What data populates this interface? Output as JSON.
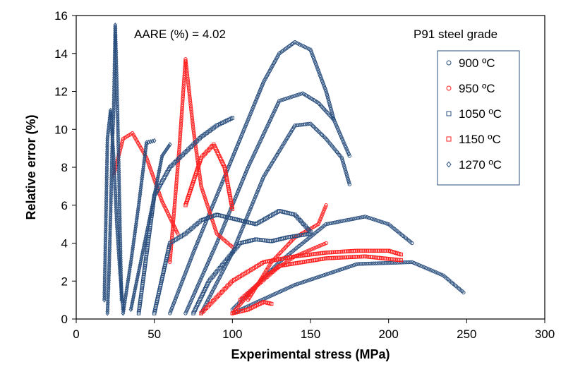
{
  "chart_data": {
    "type": "scatter",
    "xlabel": "Experimental stress (MPa)",
    "ylabel": "Relative error (%)",
    "xlim": [
      0,
      300
    ],
    "ylim": [
      0,
      16
    ],
    "xticks": [
      0,
      50,
      100,
      150,
      200,
      250,
      300
    ],
    "yticks": [
      0,
      2,
      4,
      6,
      8,
      10,
      12,
      14,
      16
    ],
    "grid": false,
    "legend_position": "right",
    "annotations": {
      "aare": "AARE (%) = 4.02",
      "grade": "P91  steel grade"
    },
    "series": [
      {
        "name": "900 ºC",
        "color": "#2a4f7e",
        "marker": "circle",
        "curves": [
          {
            "x": [
              60,
              75,
              90,
              105,
              120,
              130,
              140,
              150,
              160,
              165
            ],
            "y": [
              0.3,
              3.5,
              6.5,
              9.5,
              12.5,
              14.0,
              14.6,
              14.2,
              12.0,
              10.5
            ]
          },
          {
            "x": [
              70,
              90,
              110,
              130,
              145,
              155,
              165,
              175
            ],
            "y": [
              0.3,
              4.0,
              8.0,
              11.5,
              11.9,
              11.4,
              10.5,
              8.6
            ]
          },
          {
            "x": [
              80,
              100,
              120,
              140,
              150,
              160,
              170,
              175
            ],
            "y": [
              0.3,
              3.5,
              7.5,
              10.2,
              10.3,
              9.5,
              8.5,
              7.1
            ]
          },
          {
            "x": [
              100,
              130,
              160,
              185,
              200,
              215
            ],
            "y": [
              0.5,
              3.0,
              5.0,
              5.4,
              5.0,
              4.0
            ]
          },
          {
            "x": [
              100,
              140,
              180,
              215,
              235,
              248
            ],
            "y": [
              0.3,
              1.8,
              2.9,
              3.0,
              2.3,
              1.4
            ]
          }
        ]
      },
      {
        "name": "950 ºC",
        "color": "#ff2020",
        "marker": "circle",
        "curves": [
          {
            "x": [
              24,
              30,
              36,
              45,
              55,
              65
            ],
            "y": [
              7.6,
              9.5,
              9.8,
              8.5,
              6.2,
              4.5
            ]
          },
          {
            "x": [
              60,
              66,
              70,
              75,
              80,
              90,
              100
            ],
            "y": [
              3.0,
              9.0,
              13.7,
              10.0,
              7.0,
              4.5,
              3.8
            ]
          },
          {
            "x": [
              110,
              125,
              140,
              155,
              160
            ],
            "y": [
              1.0,
              3.0,
              4.3,
              5.0,
              6.0
            ]
          },
          {
            "x": [
              100,
              120,
              140,
              160
            ],
            "y": [
              0.3,
              2.2,
              3.3,
              4.0
            ]
          }
        ]
      },
      {
        "name": "1050 ºC",
        "color": "#2a4f7e",
        "marker": "square",
        "curves": [
          {
            "x": [
              40,
              50,
              60,
              70,
              80,
              90,
              100
            ],
            "y": [
              0.3,
              6.5,
              8.0,
              8.8,
              9.6,
              10.2,
              10.6
            ]
          },
          {
            "x": [
              50,
              60,
              70,
              80,
              90,
              100,
              115,
              130,
              140,
              150
            ],
            "y": [
              0.3,
              4.0,
              4.5,
              5.2,
              5.5,
              5.3,
              5.0,
              5.7,
              5.5,
              4.6
            ]
          },
          {
            "x": [
              75,
              85,
              95,
              105,
              115,
              125,
              135,
              150
            ],
            "y": [
              0.3,
              2.0,
              3.0,
              4.0,
              4.2,
              4.1,
              4.3,
              4.5
            ]
          }
        ]
      },
      {
        "name": "1150 ºC",
        "color": "#ff2020",
        "marker": "square",
        "curves": [
          {
            "x": [
              70,
              80,
              88,
              95,
              100
            ],
            "y": [
              6.0,
              8.5,
              9.2,
              8.0,
              5.8
            ]
          },
          {
            "x": [
              105,
              130,
              160,
              185,
              208
            ],
            "y": [
              1.0,
              2.8,
              3.2,
              3.3,
              3.1
            ]
          },
          {
            "x": [
              80,
              100,
              120,
              140,
              160,
              180,
              200,
              208
            ],
            "y": [
              0.3,
              2.0,
              3.0,
              3.3,
              3.5,
              3.6,
              3.6,
              3.4
            ]
          },
          {
            "x": [
              100,
              110,
              120,
              125
            ],
            "y": [
              0.3,
              0.5,
              0.9,
              0.8
            ]
          }
        ]
      },
      {
        "name": "1270 ºC",
        "color": "#2a4f7e",
        "marker": "diamond",
        "curves": [
          {
            "x": [
              20,
              21,
              22,
              23,
              24,
              25,
              26,
              27,
              28,
              29
            ],
            "y": [
              0.3,
              2.5,
              5.5,
              9.0,
              11.0,
              15.5,
              12.5,
              9.0,
              5.0,
              1.0
            ]
          },
          {
            "x": [
              18,
              20,
              22,
              24,
              26,
              28,
              30
            ],
            "y": [
              1.0,
              9.5,
              11.0,
              8.5,
              5.0,
              2.5,
              0.5
            ]
          },
          {
            "x": [
              30,
              35,
              40,
              45,
              50
            ],
            "y": [
              0.3,
              3.0,
              6.0,
              9.3,
              9.4
            ]
          },
          {
            "x": [
              35,
              40,
              45,
              50,
              55,
              60
            ],
            "y": [
              0.5,
              2.5,
              4.5,
              6.5,
              8.6,
              9.2
            ]
          }
        ]
      }
    ]
  }
}
